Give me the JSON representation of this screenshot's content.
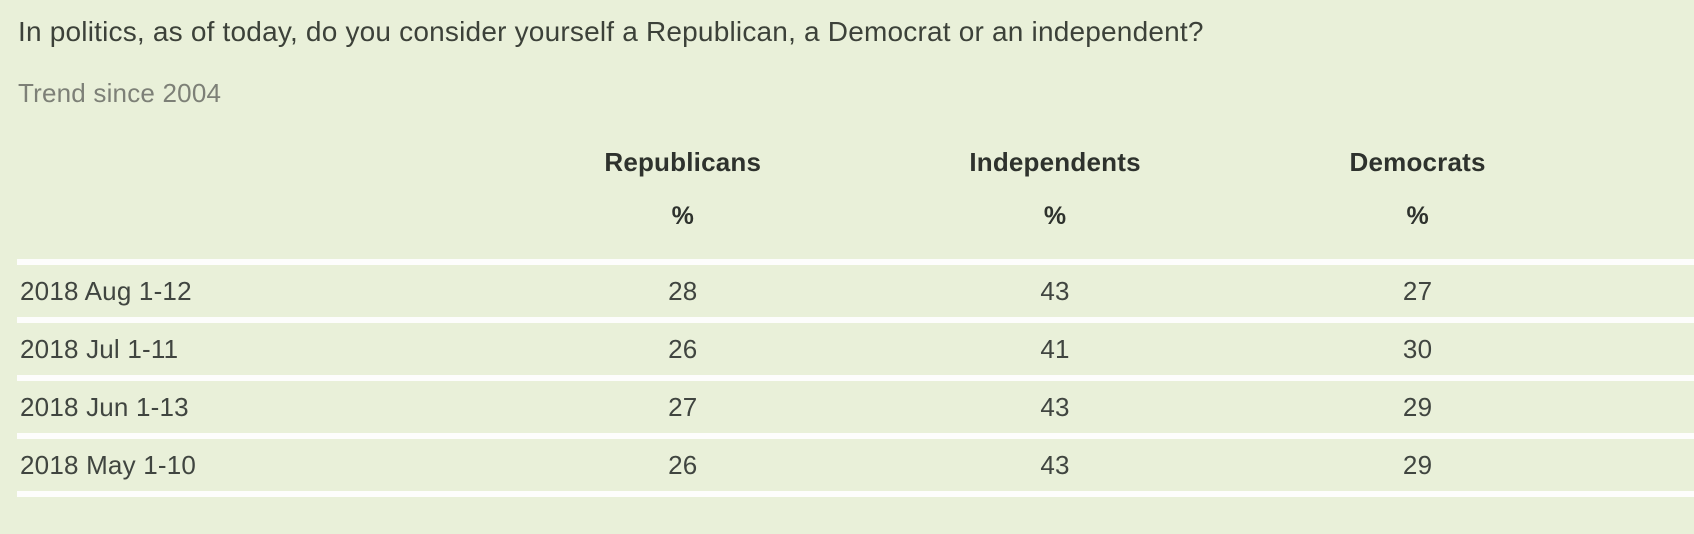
{
  "title": "In politics, as of today, do you consider yourself a Republican, a Democrat or an independent?",
  "subtitle": "Trend since 2004",
  "colors": {
    "background": "#e9f0d9",
    "divider": "#fdfdfc",
    "title_text": "#3c4139",
    "subtitle_text": "#7d8077",
    "header_text": "#2e322d",
    "body_text": "#404540"
  },
  "chart_data": {
    "type": "table",
    "title": "In politics, as of today, do you consider yourself a Republican, a Democrat or an independent?",
    "subtitle": "Trend since 2004",
    "columns": [
      "",
      "Republicans",
      "Independents",
      "Democrats"
    ],
    "unit_row": [
      "",
      "%",
      "%",
      "%"
    ],
    "rows": [
      {
        "label": "2018 Aug 1-12",
        "values": [
          "28",
          "43",
          "27"
        ]
      },
      {
        "label": "2018 Jul 1-11",
        "values": [
          "26",
          "41",
          "30"
        ]
      },
      {
        "label": "2018 Jun 1-13",
        "values": [
          "27",
          "43",
          "29"
        ]
      },
      {
        "label": "2018 May 1-10",
        "values": [
          "26",
          "43",
          "29"
        ]
      }
    ]
  }
}
